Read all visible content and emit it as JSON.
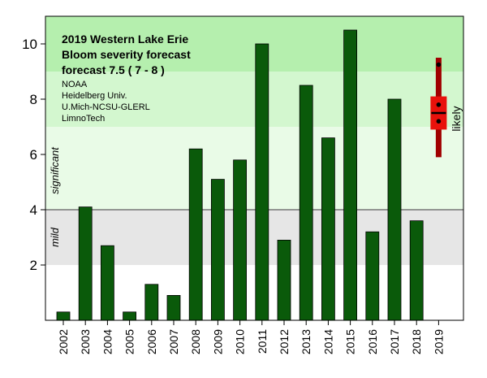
{
  "chart_data": {
    "type": "bar",
    "title_lines": [
      "2019  Western Lake Erie",
      "Bloom severity forecast",
      "forecast  7.5 ( 7 - 8 )"
    ],
    "organizations": [
      "NOAA",
      "Heidelberg Univ.",
      "U.Mich-NCSU-GLERL",
      "LimnoTech"
    ],
    "categories": [
      "2002",
      "2003",
      "2004",
      "2005",
      "2006",
      "2007",
      "2008",
      "2009",
      "2010",
      "2011",
      "2012",
      "2013",
      "2014",
      "2015",
      "2016",
      "2017",
      "2018",
      "2019"
    ],
    "values": [
      0.3,
      4.1,
      2.7,
      0.3,
      1.3,
      0.9,
      6.2,
      5.1,
      5.8,
      10.0,
      2.9,
      8.5,
      6.6,
      10.5,
      3.2,
      8.0,
      3.6,
      null
    ],
    "ylim": [
      0,
      11
    ],
    "yticks": [
      "2",
      "4",
      "6",
      "8",
      "10"
    ],
    "xlabel": "",
    "ylabel": "",
    "bands": [
      {
        "name": "mild",
        "label": "mild",
        "from": 2,
        "to": 4,
        "color": "#e6e6e6"
      },
      {
        "name": "significant",
        "label": "significant",
        "from": 4,
        "to": 7,
        "color": "#e9fbe7"
      },
      {
        "name": "significant-upper",
        "label": "",
        "from": 7,
        "to": 9,
        "color": "#d3f7cf"
      },
      {
        "name": "severe",
        "label": "",
        "from": 9,
        "to": 11,
        "color": "#b5efae"
      }
    ],
    "forecast": {
      "year": "2019",
      "value": 7.5,
      "likely_range": [
        6.9,
        8.1
      ],
      "full_range": [
        5.9,
        9.5
      ],
      "points": [
        7.2,
        7.8,
        9.25
      ],
      "label": "likely"
    },
    "colors": {
      "bar": "#0a5a0a",
      "bar_stroke": "#000000",
      "forecast_range": "#a00000",
      "forecast_likely": "#e8110b",
      "threshold_line": "#777777"
    }
  }
}
